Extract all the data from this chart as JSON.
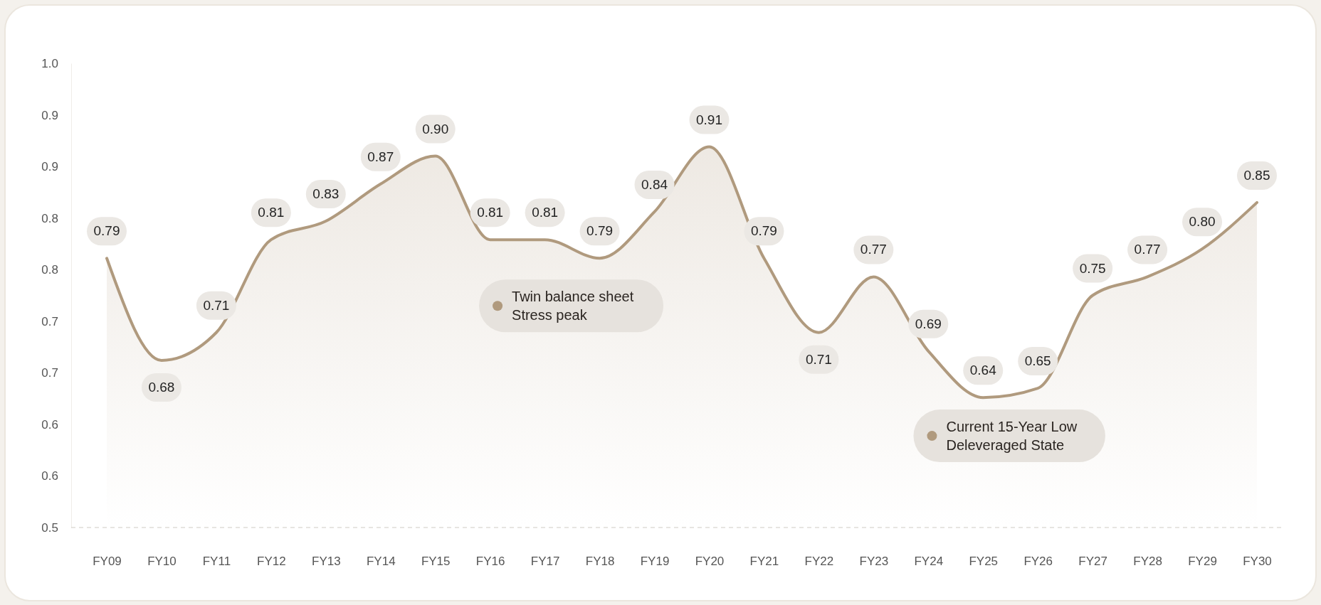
{
  "chart_data": {
    "type": "area",
    "categories": [
      "FY09",
      "FY10",
      "FY11",
      "FY12",
      "FY13",
      "FY14",
      "FY15",
      "FY16",
      "FY17",
      "FY18",
      "FY19",
      "FY20",
      "FY21",
      "FY22",
      "FY23",
      "FY24",
      "FY25",
      "FY26",
      "FY27",
      "FY28",
      "FY29",
      "FY30"
    ],
    "series": [
      {
        "color": "#b09a7e",
        "values": [
          0.79,
          0.68,
          0.71,
          0.81,
          0.83,
          0.87,
          0.9,
          0.81,
          0.81,
          0.79,
          0.84,
          0.91,
          0.79,
          0.71,
          0.77,
          0.69,
          0.64,
          0.65,
          0.75,
          0.77,
          0.8,
          0.85
        ],
        "value_labels": [
          "0.79",
          "0.68",
          "0.71",
          "0.81",
          "0.83",
          "0.87",
          "0.90",
          "0.81",
          "0.81",
          "0.79",
          "0.84",
          "0.91",
          "0.79",
          "0.71",
          "0.77",
          "0.69",
          "0.64",
          "0.65",
          "0.75",
          "0.77",
          "0.80",
          "0.85"
        ]
      }
    ],
    "ylim": [
      0.5,
      1.0
    ],
    "yticks": [
      {
        "value": 0.5,
        "label": "0.5"
      },
      {
        "value": 0.5556,
        "label": "0.6"
      },
      {
        "value": 0.6111,
        "label": "0.6"
      },
      {
        "value": 0.6667,
        "label": "0.7"
      },
      {
        "value": 0.7222,
        "label": "0.7"
      },
      {
        "value": 0.7778,
        "label": "0.8"
      },
      {
        "value": 0.8333,
        "label": "0.8"
      },
      {
        "value": 0.8889,
        "label": "0.9"
      },
      {
        "value": 0.9444,
        "label": "0.9"
      },
      {
        "value": 1.0,
        "label": "1.0"
      }
    ],
    "grid": false,
    "marker": "none",
    "line_style": "solid",
    "annotations": [
      {
        "text": "Twin balance sheet Stress peak",
        "x": "FY18",
        "y": 0.79
      },
      {
        "text": "Current 15-Year Low Deleveraged State",
        "x": "FY26",
        "y": 0.65
      }
    ]
  }
}
